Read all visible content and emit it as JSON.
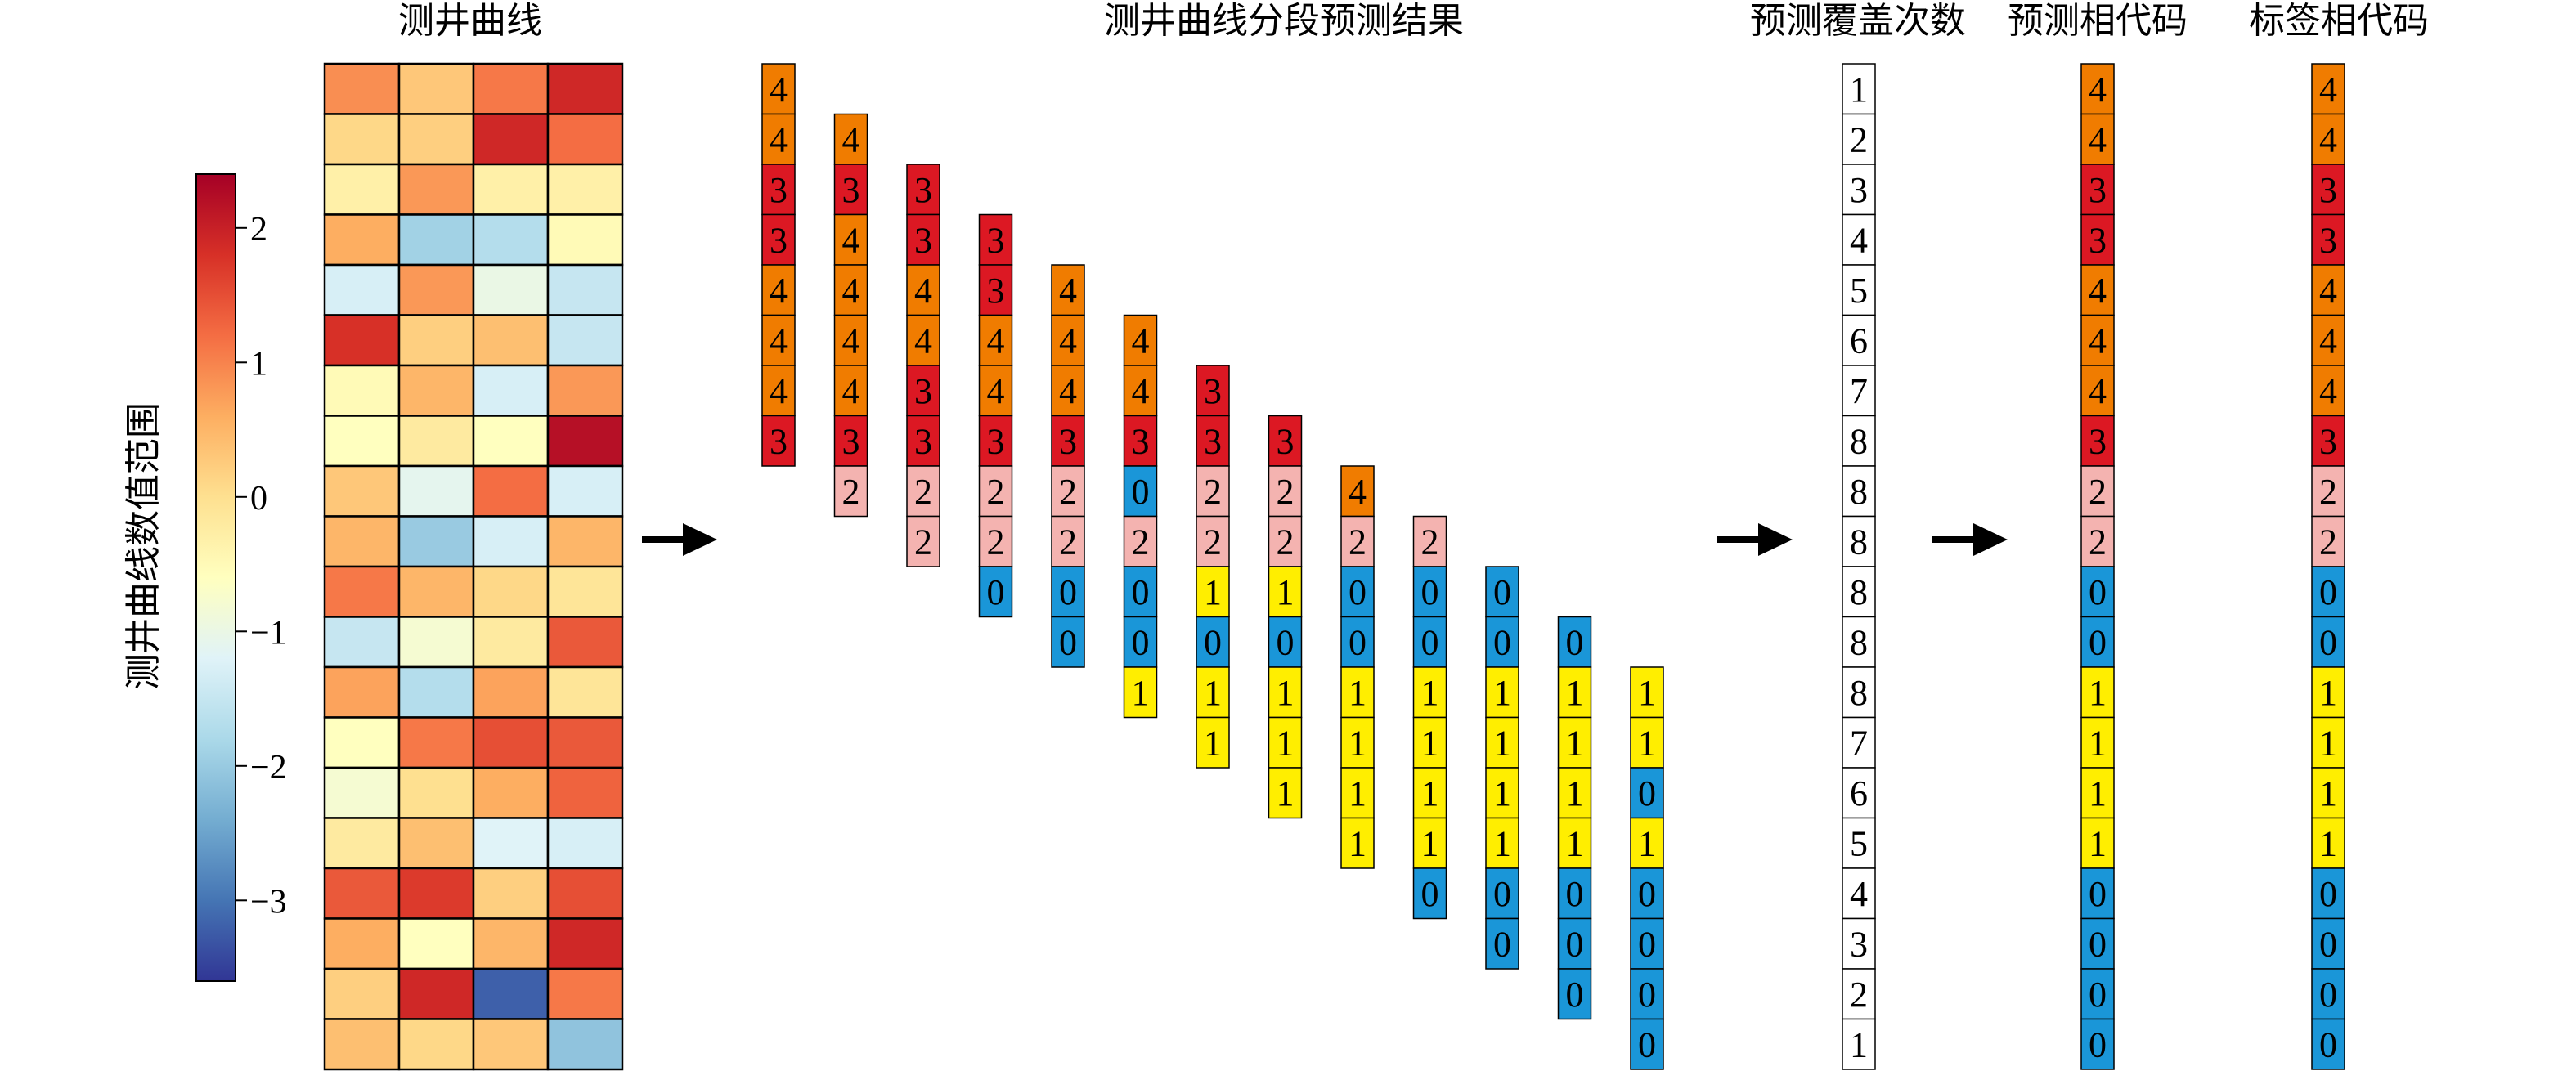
{
  "titles": {
    "heatmap": "测井曲线",
    "segments": "测井曲线分段预测结果",
    "coverage": "预测覆盖次数",
    "pred_code": "预测相代码",
    "label_code": "标签相代码"
  },
  "colorbar": {
    "label": "测井曲线数值范围",
    "ticks": [
      2,
      1,
      0,
      -1,
      -2,
      -3
    ],
    "tick_labels": [
      "2",
      "1",
      "0",
      "−1",
      "−2",
      "−3"
    ],
    "range": [
      -3.6,
      2.4
    ],
    "colormap": "RdYlBu_r"
  },
  "heatmap_values": [
    [
      0.9,
      0.3,
      1.1,
      1.9
    ],
    [
      0.1,
      0.2,
      1.9,
      1.2
    ],
    [
      -0.3,
      0.8,
      -0.3,
      -0.3
    ],
    [
      0.6,
      -1.9,
      -1.7,
      -0.5
    ],
    [
      -1.3,
      0.8,
      -1.0,
      -1.5
    ],
    [
      1.8,
      0.2,
      0.4,
      -1.5
    ],
    [
      -0.5,
      0.5,
      -1.3,
      0.8
    ],
    [
      -0.6,
      -0.2,
      -0.6,
      2.2
    ],
    [
      0.3,
      -1.1,
      1.2,
      -1.3
    ],
    [
      0.5,
      -2.0,
      -1.3,
      0.5
    ],
    [
      1.1,
      0.5,
      0.1,
      -0.1
    ],
    [
      -1.5,
      -0.8,
      -0.2,
      1.4
    ],
    [
      0.7,
      -1.7,
      0.7,
      -0.1
    ],
    [
      -0.6,
      1.1,
      1.5,
      1.4
    ],
    [
      -0.8,
      0.0,
      0.6,
      1.3
    ],
    [
      -0.2,
      0.4,
      -1.2,
      -1.3
    ],
    [
      1.4,
      1.7,
      0.2,
      1.5
    ],
    [
      0.6,
      -0.6,
      0.5,
      1.9
    ],
    [
      0.2,
      1.9,
      -3.2,
      1.1
    ],
    [
      0.4,
      0.1,
      0.3,
      -2.1
    ]
  ],
  "segments": [
    {
      "start": 0,
      "codes": [
        4,
        4,
        3,
        3,
        4,
        4,
        4,
        3
      ]
    },
    {
      "start": 1,
      "codes": [
        4,
        3,
        4,
        4,
        4,
        4,
        3,
        2
      ]
    },
    {
      "start": 2,
      "codes": [
        3,
        3,
        4,
        4,
        3,
        3,
        2,
        2
      ]
    },
    {
      "start": 3,
      "codes": [
        3,
        3,
        4,
        4,
        3,
        2,
        2,
        0
      ]
    },
    {
      "start": 4,
      "codes": [
        4,
        4,
        4,
        3,
        2,
        2,
        0,
        0
      ]
    },
    {
      "start": 5,
      "codes": [
        4,
        4,
        3,
        0,
        2,
        0,
        0,
        1
      ]
    },
    {
      "start": 6,
      "codes": [
        3,
        3,
        2,
        2,
        1,
        0,
        1,
        1
      ]
    },
    {
      "start": 7,
      "codes": [
        3,
        2,
        2,
        1,
        0,
        1,
        1,
        1
      ]
    },
    {
      "start": 8,
      "codes": [
        4,
        2,
        0,
        0,
        1,
        1,
        1,
        1
      ]
    },
    {
      "start": 9,
      "codes": [
        2,
        0,
        0,
        1,
        1,
        1,
        1,
        0
      ]
    },
    {
      "start": 10,
      "codes": [
        0,
        0,
        1,
        1,
        1,
        1,
        0,
        0
      ]
    },
    {
      "start": 11,
      "codes": [
        0,
        1,
        1,
        1,
        1,
        0,
        0,
        0
      ]
    },
    {
      "start": 12,
      "codes": [
        1,
        1,
        0,
        1,
        0,
        0,
        0,
        0
      ]
    }
  ],
  "coverage": [
    1,
    2,
    3,
    4,
    5,
    6,
    7,
    8,
    8,
    8,
    8,
    8,
    8,
    7,
    6,
    5,
    4,
    3,
    2,
    1
  ],
  "pred_codes": [
    4,
    4,
    3,
    3,
    4,
    4,
    4,
    3,
    2,
    2,
    0,
    0,
    1,
    1,
    1,
    1,
    0,
    0,
    0,
    0
  ],
  "label_codes": [
    4,
    4,
    3,
    3,
    4,
    4,
    4,
    3,
    2,
    2,
    0,
    0,
    1,
    1,
    1,
    1,
    0,
    0,
    0,
    0
  ],
  "code_colors": {
    "0": "#1a96d8",
    "1": "#ffee00",
    "2": "#f4b3b0",
    "3": "#dc1823",
    "4": "#f07c00"
  },
  "arrow_count": 3
}
